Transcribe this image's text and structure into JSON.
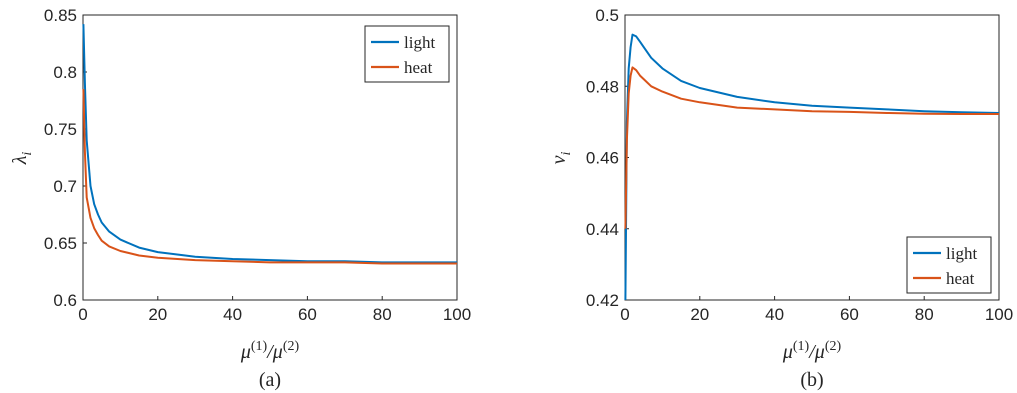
{
  "chart_data": [
    {
      "type": "line",
      "caption": "(a)",
      "xlabel": "μ(1)/μ(2)",
      "ylabel": "λi",
      "xlim": [
        0,
        100
      ],
      "ylim": [
        0.6,
        0.85
      ],
      "xticks": [
        0,
        20,
        40,
        60,
        80,
        100
      ],
      "yticks": [
        0.6,
        0.65,
        0.7,
        0.75,
        0.8,
        0.85
      ],
      "ytick_labels": [
        "0.6",
        "0.65",
        "0.7",
        "0.75",
        "0.8",
        "0.85"
      ],
      "grid": false,
      "legend_position": "top-right",
      "series": [
        {
          "name": "light",
          "color": "#0072BD",
          "x": [
            0.1,
            0.5,
            1,
            2,
            3,
            4,
            5,
            7,
            10,
            15,
            20,
            30,
            40,
            50,
            60,
            70,
            80,
            90,
            100
          ],
          "y": [
            0.842,
            0.79,
            0.74,
            0.7,
            0.684,
            0.675,
            0.668,
            0.66,
            0.653,
            0.646,
            0.642,
            0.638,
            0.636,
            0.635,
            0.634,
            0.634,
            0.633,
            0.633,
            0.633
          ]
        },
        {
          "name": "heat",
          "color": "#D95319",
          "x": [
            0.1,
            0.5,
            1,
            2,
            3,
            4,
            5,
            7,
            10,
            15,
            20,
            30,
            40,
            50,
            60,
            70,
            80,
            90,
            100
          ],
          "y": [
            0.785,
            0.73,
            0.69,
            0.672,
            0.663,
            0.657,
            0.652,
            0.647,
            0.643,
            0.639,
            0.637,
            0.635,
            0.634,
            0.633,
            0.633,
            0.633,
            0.632,
            0.632,
            0.632
          ]
        }
      ]
    },
    {
      "type": "line",
      "caption": "(b)",
      "xlabel": "μ(1)/μ(2)",
      "ylabel": "vi",
      "xlim": [
        0,
        100
      ],
      "ylim": [
        0.42,
        0.5
      ],
      "xticks": [
        0,
        20,
        40,
        60,
        80,
        100
      ],
      "yticks": [
        0.42,
        0.44,
        0.46,
        0.48,
        0.5
      ],
      "ytick_labels": [
        "0.42",
        "0.44",
        "0.46",
        "0.48",
        "0.5"
      ],
      "grid": false,
      "legend_position": "bottom-right",
      "series": [
        {
          "name": "light",
          "color": "#0072BD",
          "x": [
            0.1,
            0.5,
            1,
            1.5,
            2,
            3,
            4,
            5,
            7,
            10,
            15,
            20,
            30,
            40,
            50,
            60,
            70,
            80,
            90,
            100
          ],
          "y": [
            0.42,
            0.47,
            0.485,
            0.491,
            0.4945,
            0.494,
            0.4925,
            0.491,
            0.488,
            0.485,
            0.4815,
            0.4795,
            0.477,
            0.4755,
            0.4745,
            0.474,
            0.4735,
            0.473,
            0.4727,
            0.4725
          ]
        },
        {
          "name": "heat",
          "color": "#D95319",
          "x": [
            0.1,
            0.5,
            1,
            1.5,
            2,
            3,
            4,
            5,
            7,
            10,
            15,
            20,
            30,
            40,
            50,
            60,
            70,
            80,
            90,
            100
          ],
          "y": [
            0.44,
            0.465,
            0.478,
            0.483,
            0.4853,
            0.4845,
            0.483,
            0.482,
            0.48,
            0.4785,
            0.4765,
            0.4755,
            0.474,
            0.4735,
            0.473,
            0.4728,
            0.4725,
            0.4723,
            0.4722,
            0.4722
          ]
        }
      ]
    }
  ]
}
